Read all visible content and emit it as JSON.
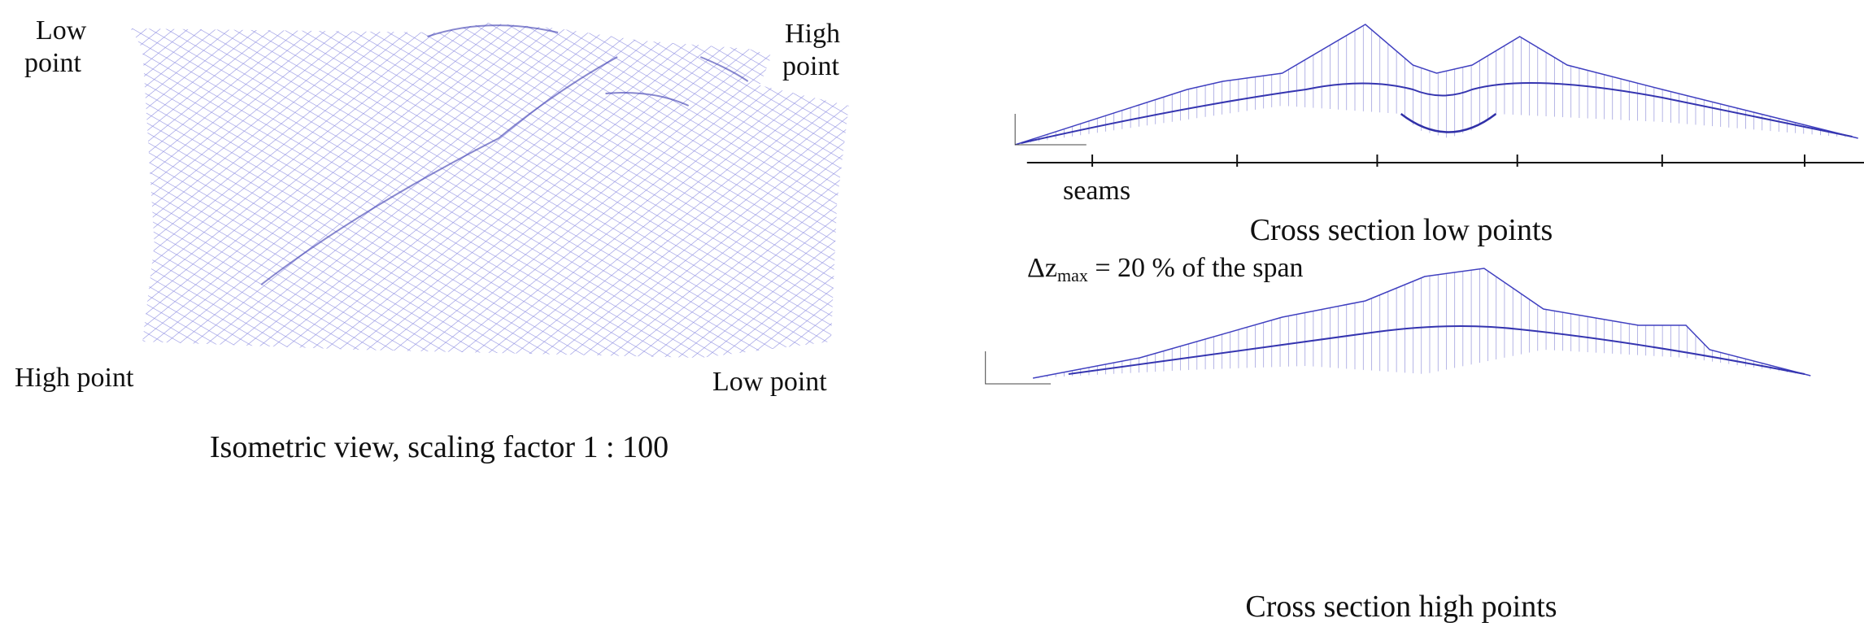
{
  "left_panel": {
    "top_left_label": [
      "Low",
      "point"
    ],
    "top_right_label": [
      "High",
      "point"
    ],
    "bottom_left_label": "High point",
    "bottom_right_label": "Low point",
    "caption": "Isometric view, scaling factor 1 : 100"
  },
  "right_panel": {
    "seams_label": "seams",
    "low_caption": "Cross section low points",
    "delta": {
      "symbol": "Δz",
      "subscript": "max",
      "text": " = 20 % of the span"
    },
    "high_caption": "Cross section high points"
  }
}
